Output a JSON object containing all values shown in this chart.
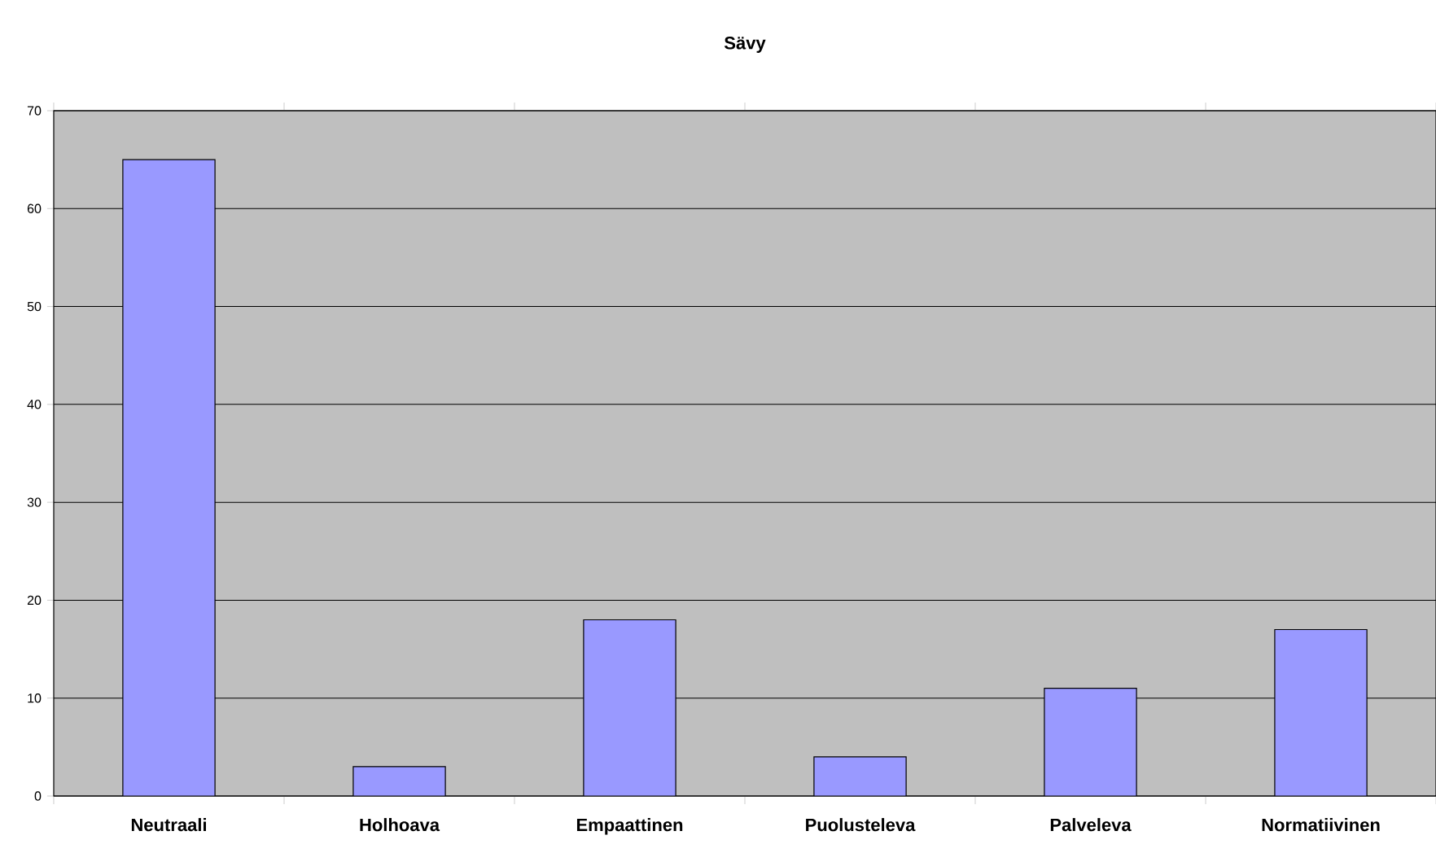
{
  "chart_data": {
    "type": "bar",
    "title": "Sävy",
    "categories": [
      "Neutraali",
      "Holhoava",
      "Empaattinen",
      "Puolusteleva",
      "Palveleva",
      "Normatiivinen"
    ],
    "values": [
      65,
      3,
      18,
      4,
      11,
      17
    ],
    "color": "#9999ff",
    "ylim": [
      0,
      70
    ],
    "yticks": [
      0,
      10,
      20,
      30,
      40,
      50,
      60,
      70
    ],
    "grid": "y"
  }
}
